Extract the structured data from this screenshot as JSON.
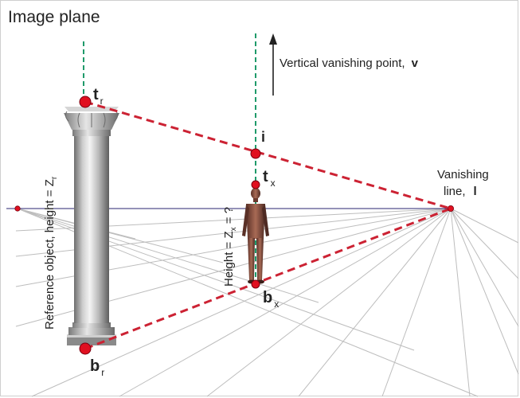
{
  "title": "Image plane",
  "labels": {
    "vertical_vp": "Vertical vanishing point,",
    "vertical_vp_symbol": "v",
    "vanishing_line_1": "Vanishing",
    "vanishing_line_2": "line,",
    "vanishing_line_symbol": "l",
    "reference": "Reference object, height = Z",
    "reference_sub": "r",
    "height_query": "Height = Z",
    "height_query_sub": "x",
    "height_query_tail": " = ?"
  },
  "points": {
    "t_r": {
      "letter": "t",
      "sub": "r"
    },
    "b_r": {
      "letter": "b",
      "sub": "r"
    },
    "t_x": {
      "letter": "t",
      "sub": "x"
    },
    "b_x": {
      "letter": "b",
      "sub": "x"
    },
    "i": {
      "letter": "i",
      "sub": ""
    }
  },
  "colors": {
    "construction_line": "#cc2233",
    "vertical_line": "#1f9a6a",
    "horizon": "#2a2570",
    "ground_grid": "#bdbdbd",
    "point": "#e01020"
  }
}
